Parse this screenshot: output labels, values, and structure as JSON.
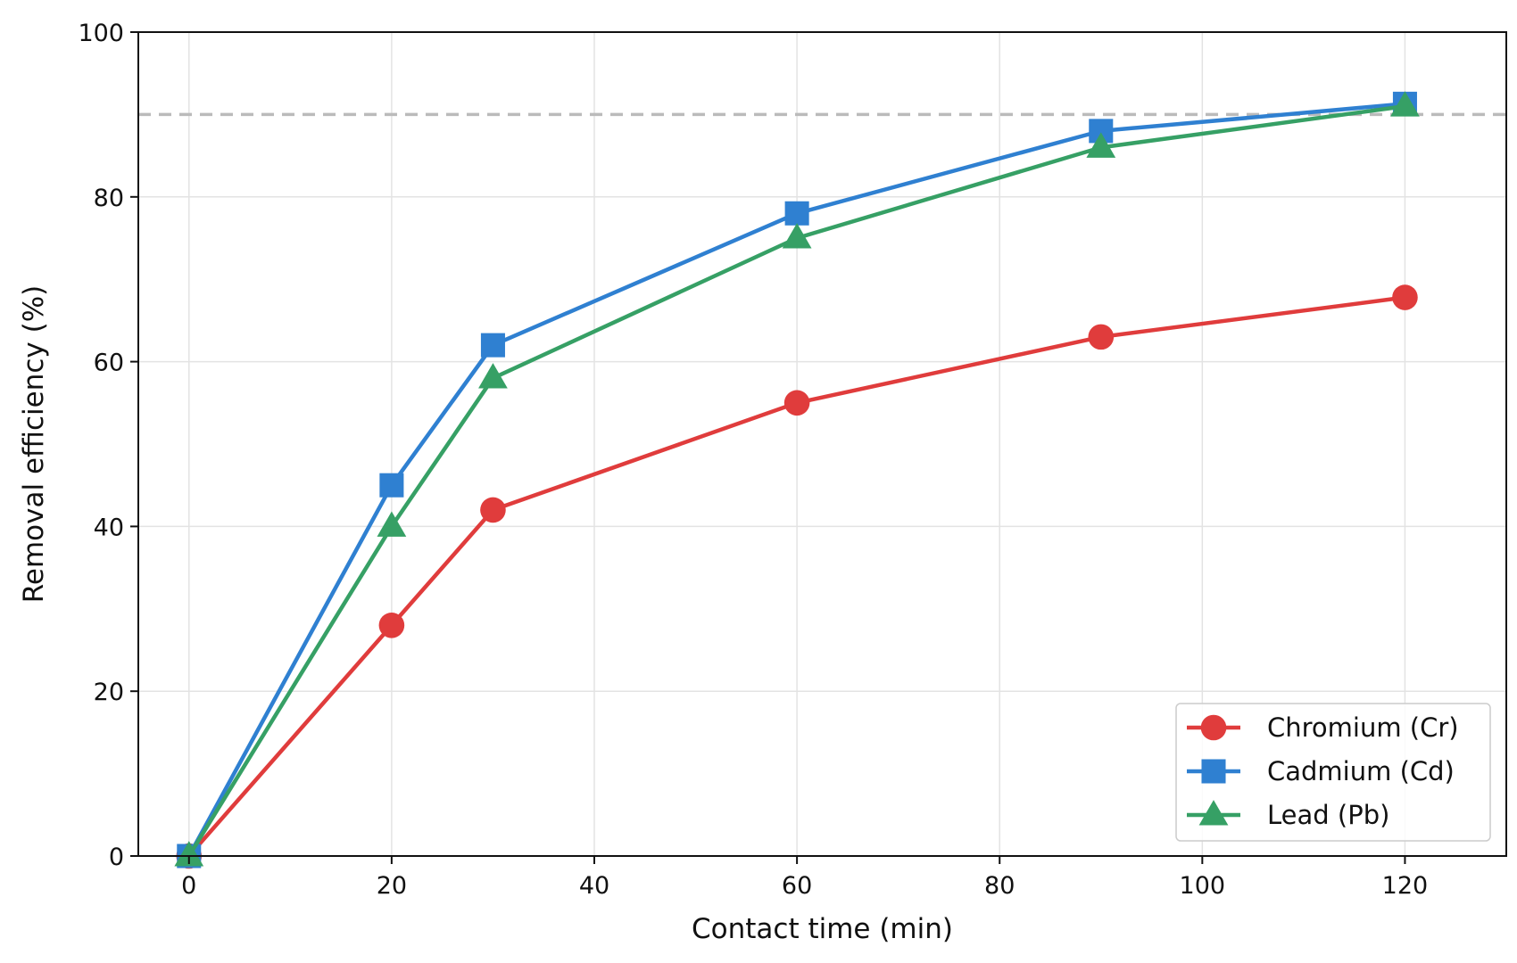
{
  "chart_data": {
    "type": "line",
    "title": "",
    "xlabel": "Contact time (min)",
    "ylabel": "Removal efficiency (%)",
    "xlim": [
      -5,
      130
    ],
    "ylim": [
      0,
      100
    ],
    "xticks": [
      0,
      20,
      40,
      60,
      80,
      100,
      120
    ],
    "yticks": [
      0,
      20,
      40,
      60,
      80,
      100
    ],
    "grid": true,
    "legend_position": "lower-right",
    "reference_line": {
      "y": 90,
      "style": "dashed",
      "color": "#bbbbbb"
    },
    "x": [
      0,
      20,
      30,
      60,
      90,
      120
    ],
    "series": [
      {
        "name": "Chromium (Cr)",
        "color": "#e03c3c",
        "marker": "circle",
        "values": [
          0,
          28,
          42,
          55,
          63,
          67.8
        ]
      },
      {
        "name": "Cadmium (Cd)",
        "color": "#2f80d1",
        "marker": "square",
        "values": [
          0,
          45,
          62,
          78,
          88,
          91.3
        ]
      },
      {
        "name": "Lead (Pb)",
        "color": "#36a065",
        "marker": "triangle",
        "values": [
          0,
          40,
          58,
          75,
          86,
          91
        ]
      }
    ]
  }
}
